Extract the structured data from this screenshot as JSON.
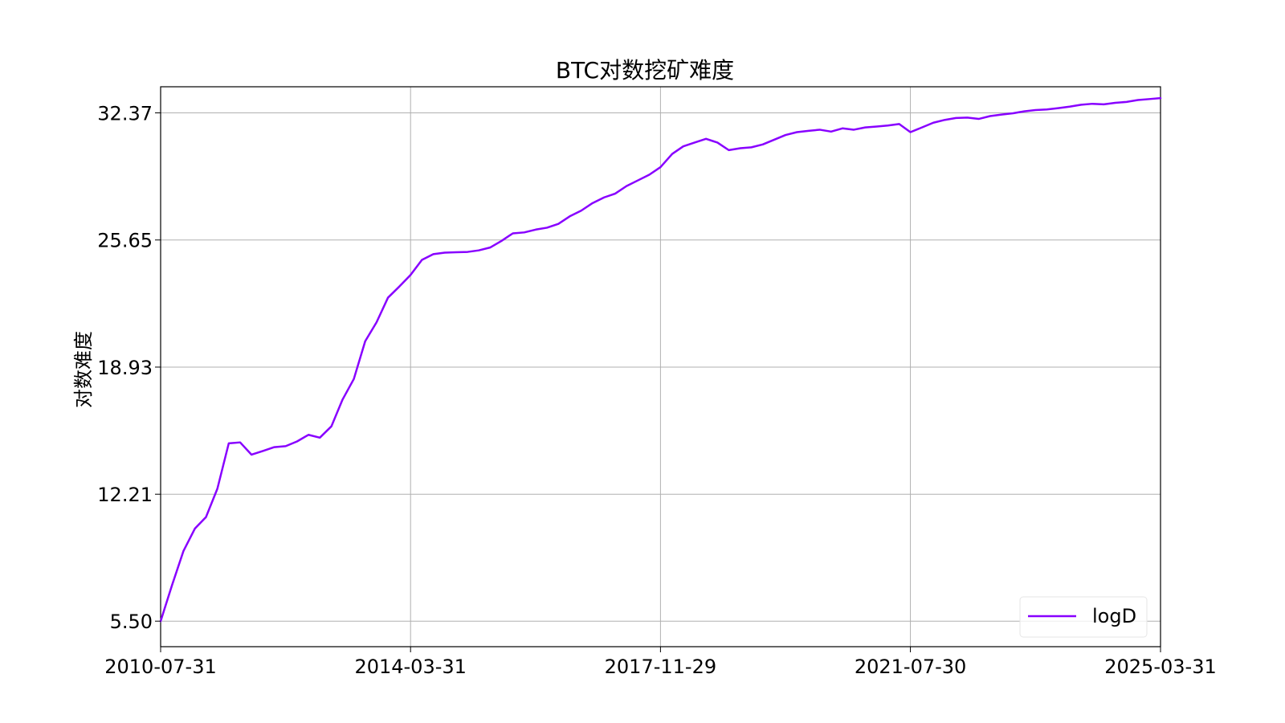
{
  "chart_data": {
    "type": "line",
    "title": "BTC对数挖矿难度",
    "xlabel": "",
    "ylabel": "对数难度",
    "x_ticks": [
      "2010-07-31",
      "2014-03-31",
      "2017-11-29",
      "2021-07-30",
      "2025-03-31"
    ],
    "y_ticks": [
      "5.50",
      "12.21",
      "18.93",
      "25.65",
      "32.37"
    ],
    "xlim": [
      "2010-07-31",
      "2025-03-31"
    ],
    "ylim": [
      4.15,
      33.75
    ],
    "grid": true,
    "legend_position": "lower-right",
    "colors": {
      "line": "#8800ff",
      "grid": "#b0b0b0"
    },
    "series": [
      {
        "name": "logD",
        "x": [
          "2010-07-31",
          "2010-09-30",
          "2010-11-30",
          "2011-01-31",
          "2011-03-31",
          "2011-05-31",
          "2011-07-31",
          "2011-09-30",
          "2011-11-30",
          "2012-01-31",
          "2012-03-31",
          "2012-05-31",
          "2012-07-31",
          "2012-09-30",
          "2012-11-30",
          "2013-01-31",
          "2013-03-31",
          "2013-05-31",
          "2013-07-31",
          "2013-09-30",
          "2013-11-30",
          "2014-01-31",
          "2014-03-31",
          "2014-05-31",
          "2014-07-31",
          "2014-09-30",
          "2014-11-30",
          "2015-01-31",
          "2015-03-31",
          "2015-05-31",
          "2015-07-31",
          "2015-09-30",
          "2015-11-30",
          "2016-01-31",
          "2016-03-31",
          "2016-05-31",
          "2016-07-31",
          "2016-09-30",
          "2016-11-30",
          "2017-01-31",
          "2017-03-31",
          "2017-05-31",
          "2017-07-31",
          "2017-09-30",
          "2017-11-29",
          "2018-01-31",
          "2018-03-31",
          "2018-05-31",
          "2018-07-31",
          "2018-09-30",
          "2018-11-30",
          "2019-01-31",
          "2019-03-31",
          "2019-05-31",
          "2019-07-31",
          "2019-09-30",
          "2019-11-30",
          "2020-01-31",
          "2020-03-31",
          "2020-05-31",
          "2020-07-31",
          "2020-09-30",
          "2020-11-30",
          "2021-01-31",
          "2021-03-31",
          "2021-05-31",
          "2021-07-30",
          "2021-09-30",
          "2021-11-30",
          "2022-01-31",
          "2022-03-31",
          "2022-05-31",
          "2022-07-31",
          "2022-09-30",
          "2022-11-30",
          "2023-01-31",
          "2023-03-31",
          "2023-05-31",
          "2023-07-31",
          "2023-09-30",
          "2023-11-30",
          "2024-01-31",
          "2024-03-31",
          "2024-05-31",
          "2024-07-31",
          "2024-09-30",
          "2024-11-30",
          "2025-01-31",
          "2025-03-31"
        ],
        "values": [
          5.5,
          7.4,
          9.2,
          10.4,
          11.0,
          12.5,
          14.9,
          14.95,
          14.3,
          14.5,
          14.7,
          14.75,
          15.0,
          15.35,
          15.2,
          15.8,
          17.2,
          18.3,
          20.3,
          21.3,
          22.6,
          23.2,
          23.8,
          24.6,
          24.9,
          24.98,
          25.0,
          25.02,
          25.1,
          25.25,
          25.6,
          26.0,
          26.05,
          26.2,
          26.3,
          26.5,
          26.9,
          27.2,
          27.6,
          27.9,
          28.1,
          28.5,
          28.8,
          29.1,
          29.5,
          30.2,
          30.6,
          30.8,
          31.0,
          30.8,
          30.4,
          30.5,
          30.55,
          30.7,
          30.95,
          31.2,
          31.35,
          31.42,
          31.48,
          31.38,
          31.55,
          31.48,
          31.6,
          31.65,
          31.7,
          31.78,
          31.35,
          31.6,
          31.85,
          32.0,
          32.1,
          32.12,
          32.05,
          32.2,
          32.28,
          32.35,
          32.45,
          32.52,
          32.55,
          32.62,
          32.7,
          32.8,
          32.85,
          32.82,
          32.9,
          32.95,
          33.05,
          33.1,
          33.15
        ]
      }
    ]
  }
}
